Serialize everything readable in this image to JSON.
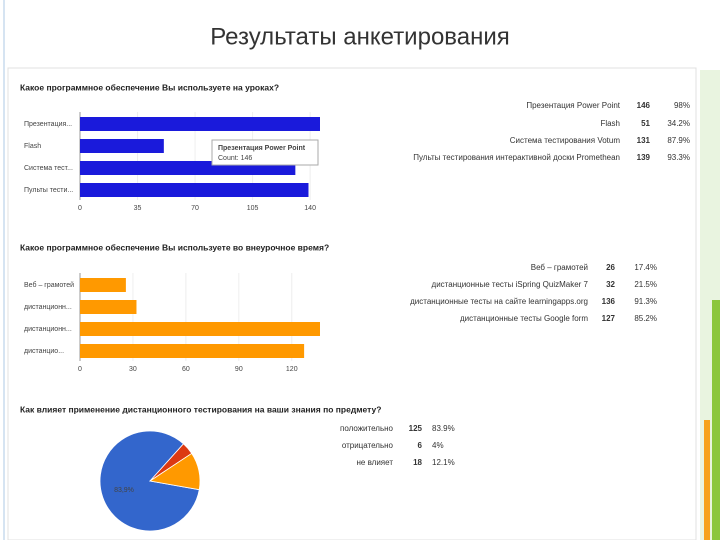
{
  "title": "Результаты анкетирования",
  "chart_data": [
    {
      "type": "hbar",
      "title": "Какое программное обеспечение Вы используете на уроках?",
      "categories": [
        "Презентация...",
        "Flash",
        "Система тест...",
        "Пульты тести..."
      ],
      "legend_labels": [
        "Презентация Power Point",
        "Flash",
        "Система тестирования Votum",
        "Пульты тестирования интерактивной доски Promethean"
      ],
      "values": [
        146,
        51,
        131,
        139
      ],
      "percent_labels": [
        "98%",
        "34.2%",
        "87.9%",
        "93.3%"
      ],
      "color": "#1a1adb",
      "xlim": [
        0,
        146
      ],
      "xticks": [
        0,
        35,
        70,
        105,
        140
      ],
      "tooltip": [
        "Презентация Power Point",
        "Count: 146"
      ]
    },
    {
      "type": "hbar",
      "title": "Какое программное обеспечение Вы используете во внеурочное время?",
      "categories": [
        "Веб – грамотей",
        "дистанционн...",
        "дистанционн...",
        "дистанцио..."
      ],
      "legend_labels": [
        "Веб – грамотей",
        "дистанционные тесты iSpring QuizMaker 7",
        "дистанционные тесты на сайте learningapps.org",
        "дистанционные тесты Google form"
      ],
      "values": [
        26,
        32,
        136,
        127
      ],
      "percent_labels": [
        "17.4%",
        "21.5%",
        "91.3%",
        "85.2%"
      ],
      "color": "#ff9900",
      "xlim": [
        0,
        136
      ],
      "xticks": [
        0,
        30,
        60,
        90,
        120
      ]
    },
    {
      "type": "pie",
      "title": "Как влияет применение дистанционного тестирования на ваши знания по предмету?",
      "categories": [
        "положительно",
        "отрицательно",
        "не влияет"
      ],
      "values": [
        125,
        6,
        18
      ],
      "percent_labels": [
        "83.9%",
        "4%",
        "12.1%"
      ],
      "value_labels": [
        "83,9%",
        null,
        null
      ],
      "colors": [
        "#3366cc",
        "#dc3912",
        "#ff9900"
      ]
    }
  ]
}
